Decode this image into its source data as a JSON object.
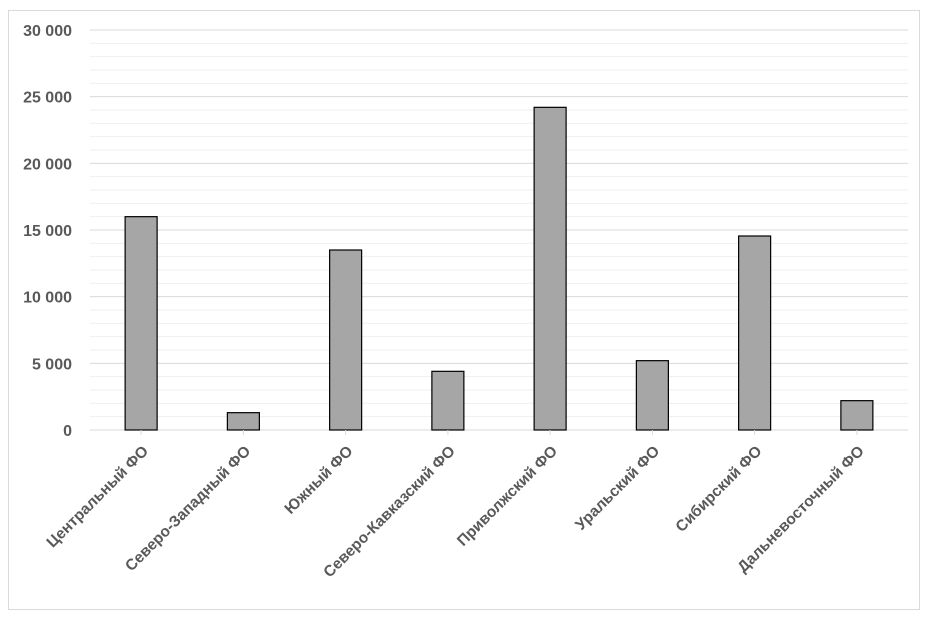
{
  "chart_data": {
    "type": "bar",
    "title": "",
    "xlabel": "",
    "ylabel": "",
    "categories": [
      "Центральный ФО",
      "Северо-Западный ФО",
      "Южный ФО",
      "Северо-Кавказский ФО",
      "Приволжский ФО",
      "Уральский ФО",
      "Сибирский ФО",
      "Дальневосточный ФО"
    ],
    "values": [
      16000,
      1300,
      13500,
      4400,
      24200,
      5200,
      14550,
      2200
    ],
    "ylim": [
      0,
      30000
    ],
    "yticks": [
      0,
      5000,
      10000,
      15000,
      20000,
      25000,
      30000
    ],
    "ytick_labels": [
      "0",
      "5 000",
      "10 000",
      "15 000",
      "20 000",
      "25 000",
      "30 000"
    ],
    "grid": true,
    "minor_grid": true,
    "legend": "none",
    "colors": {
      "bar_fill": "#a6a6a6",
      "bar_stroke": "#000000",
      "grid_major": "#d9d9d9",
      "grid_minor": "#efefef",
      "text": "#595959"
    }
  }
}
